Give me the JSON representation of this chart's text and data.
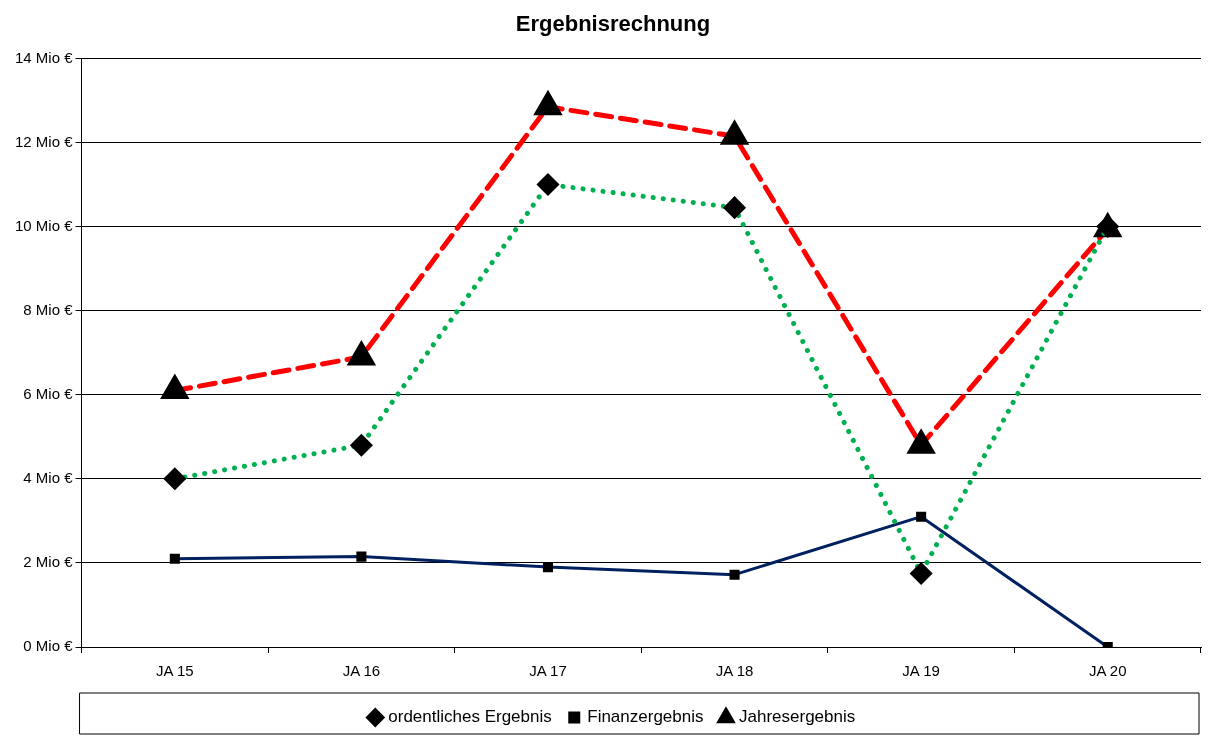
{
  "chart_data": {
    "type": "line",
    "title": "Ergebnisrechnung",
    "categories": [
      "JA 15",
      "JA 16",
      "JA 17",
      "JA 18",
      "JA 19",
      "JA 20"
    ],
    "series": [
      {
        "name": "ordentliches Ergebnis",
        "color": "#00b050",
        "marker": "diamond",
        "line_style": "dotted",
        "values": [
          4.0,
          4.8,
          11.0,
          10.45,
          1.75,
          10.0
        ]
      },
      {
        "name": "Finanzergebnis",
        "color": "#002060",
        "marker": "square",
        "line_style": "solid",
        "values": [
          2.1,
          2.15,
          1.9,
          1.72,
          3.1,
          0
        ]
      },
      {
        "name": "Jahresergebnis",
        "color": "#ff0000",
        "marker": "triangle",
        "line_style": "dashed",
        "values": [
          6.1,
          6.9,
          12.85,
          12.15,
          4.8,
          9.95
        ]
      }
    ],
    "ylim": [
      0,
      14
    ],
    "yticks": [
      {
        "value": 0,
        "label": "0 Mio €"
      },
      {
        "value": 2,
        "label": "2 Mio €"
      },
      {
        "value": 4,
        "label": "4 Mio €"
      },
      {
        "value": 6,
        "label": "6 Mio €"
      },
      {
        "value": 8,
        "label": "8 Mio €"
      },
      {
        "value": 10,
        "label": "10 Mio €"
      },
      {
        "value": 12,
        "label": "12 Mio €"
      },
      {
        "value": 14,
        "label": "14 Mio €"
      }
    ],
    "grid": "y",
    "legend": "bottom"
  }
}
